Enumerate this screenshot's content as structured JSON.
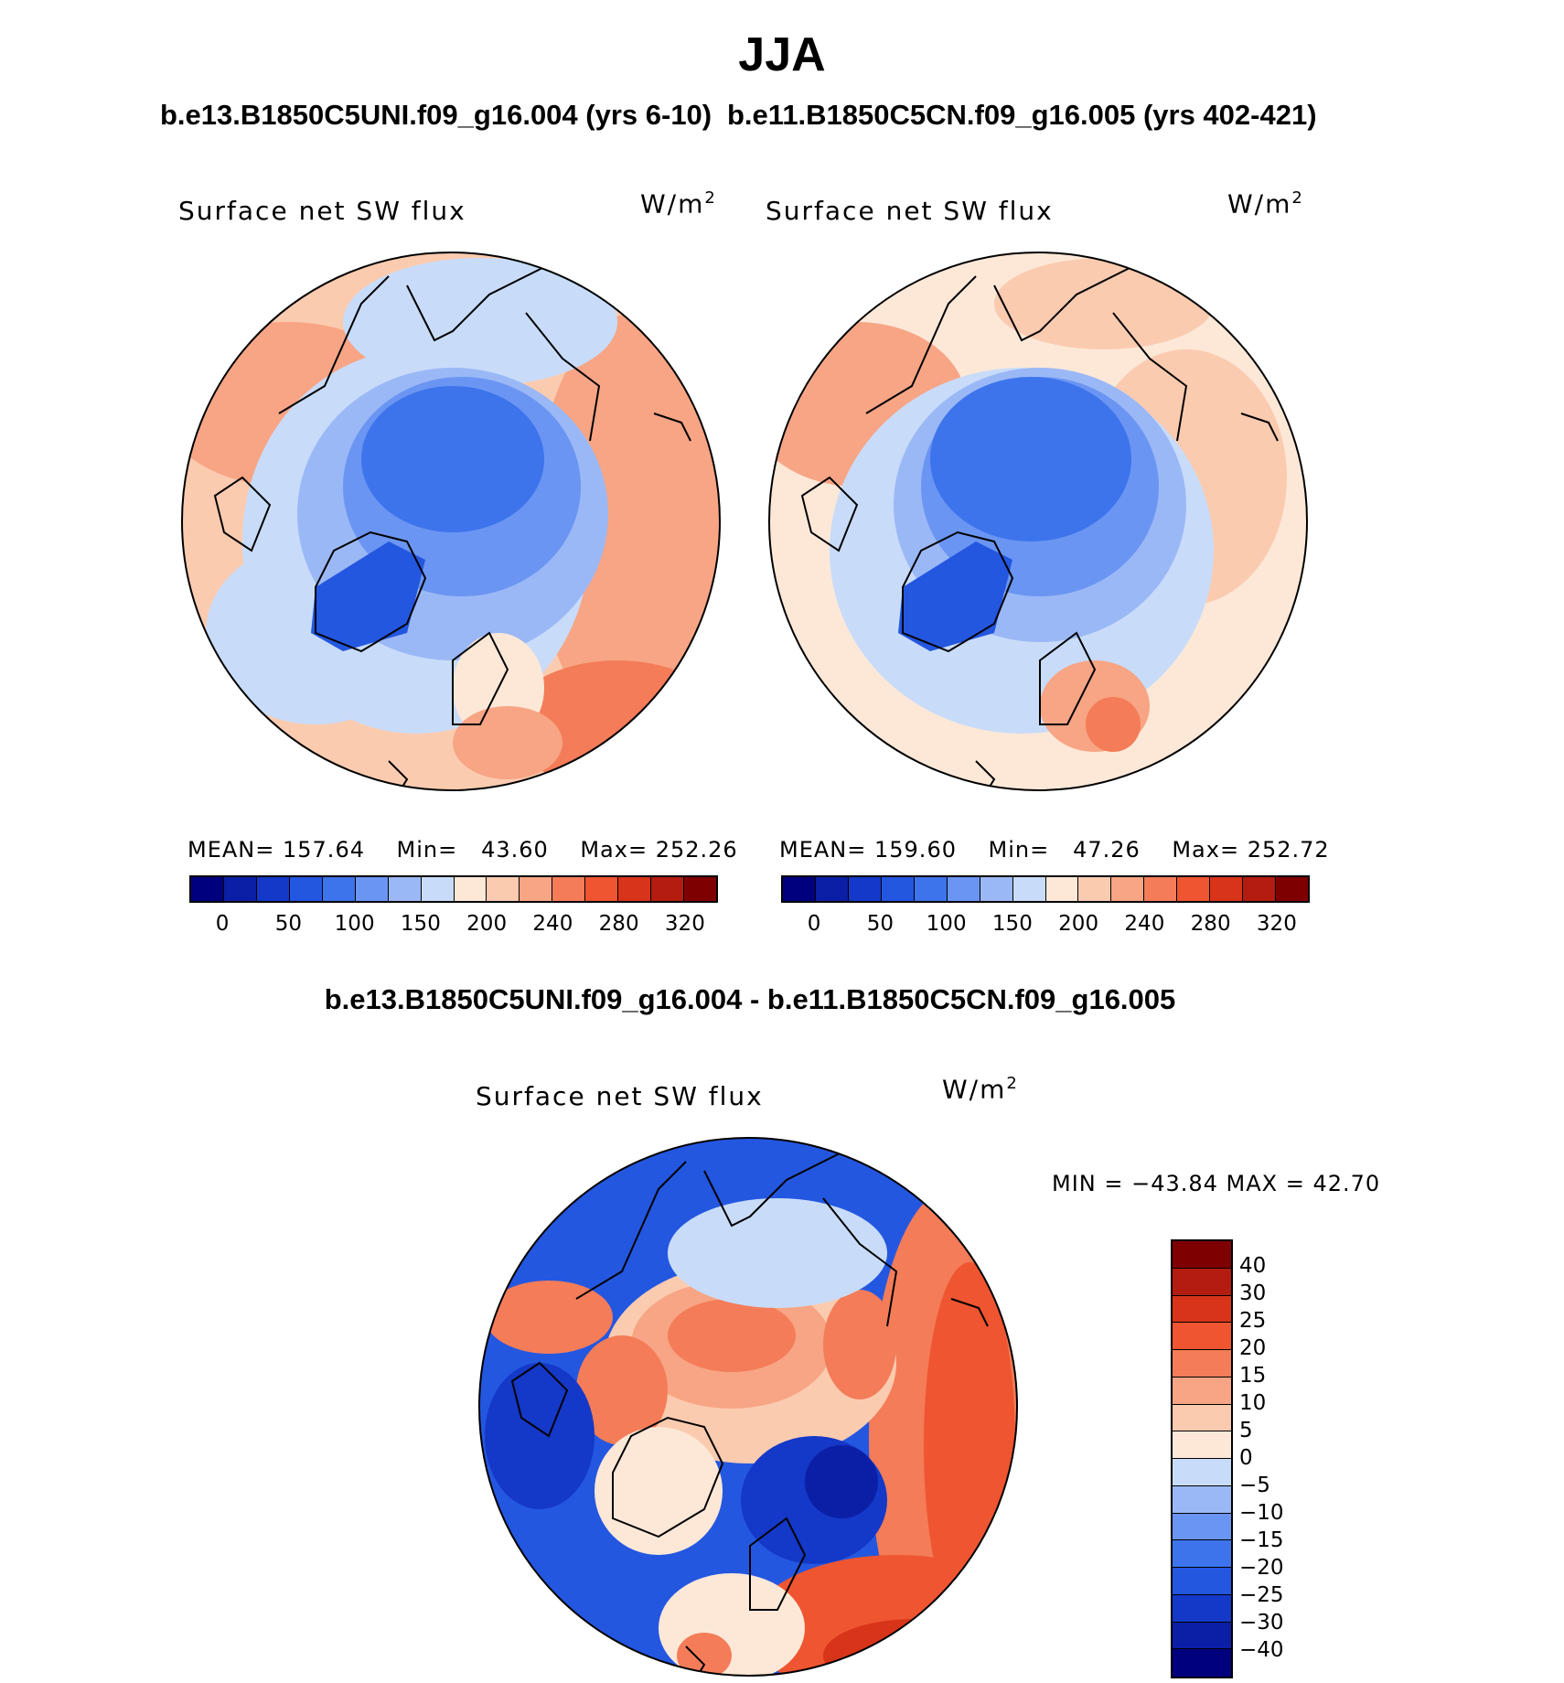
{
  "figure": {
    "title": "JJA",
    "panel1_title": "b.e13.B1850C5UNI.f09_g16.004 (yrs 6-10)",
    "panel2_title": "b.e11.B1850C5CN.f09_g16.005 (yrs 402-421)",
    "diff_title": "b.e13.B1850C5UNI.f09_g16.004 - b.e11.B1850C5CN.f09_g16.005"
  },
  "panels": [
    {
      "variable": "Surface net SW flux",
      "units_base": "W/m",
      "units_exp": "2",
      "mean_label": "MEAN=",
      "mean": "157.64",
      "min_label": "Min=",
      "min": "43.60",
      "max_label": "Max=",
      "max": "252.26"
    },
    {
      "variable": "Surface net SW flux",
      "units_base": "W/m",
      "units_exp": "2",
      "mean_label": "MEAN=",
      "mean": "159.60",
      "min_label": "Min=",
      "min": "47.26",
      "max_label": "Max=",
      "max": "252.72"
    }
  ],
  "abs_colorbar": {
    "colors": [
      "#00007f",
      "#0a1fa5",
      "#1438c8",
      "#2457e0",
      "#3d74ec",
      "#6a95f2",
      "#9bb8f6",
      "#c8dcfa",
      "#fde8d8",
      "#fbcbb0",
      "#f7a584",
      "#f47c58",
      "#ee5530",
      "#d8341a",
      "#b31c0f",
      "#7f0000"
    ],
    "ticks": [
      "0",
      "50",
      "100",
      "150",
      "200",
      "240",
      "280",
      "320"
    ]
  },
  "diff_panel": {
    "variable": "Surface net SW flux",
    "units_base": "W/m",
    "units_exp": "2",
    "minmax_text": "MIN = −43.84 MAX =   42.70"
  },
  "diff_colorbar": {
    "colors": [
      "#7f0000",
      "#b31c0f",
      "#d8341a",
      "#ee5530",
      "#f47c58",
      "#f7a584",
      "#fbcbb0",
      "#fde8d8",
      "#c8dcfa",
      "#9bb8f6",
      "#6a95f2",
      "#3d74ec",
      "#2457e0",
      "#1438c8",
      "#0a1fa5",
      "#00007f"
    ],
    "ticks": [
      "40",
      "30",
      "25",
      "20",
      "15",
      "10",
      "5",
      "0",
      "−5",
      "−10",
      "−15",
      "−20",
      "−25",
      "−30",
      "−40"
    ]
  },
  "icons": {
    "map1": "polar-stereographic-map",
    "map2": "polar-stereographic-map",
    "map3": "polar-stereographic-difference-map"
  }
}
